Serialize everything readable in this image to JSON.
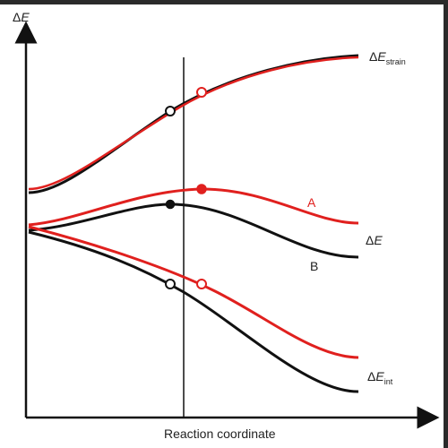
{
  "diagram": {
    "y_axis_symbol": "Δ",
    "y_axis_var": "E",
    "x_axis_label": "Reaction coordinate",
    "curve_labels": {
      "strain": {
        "symbol": "Δ",
        "var": "E",
        "sub": "strain"
      },
      "total": {
        "symbol": "Δ",
        "var": "E"
      },
      "int": {
        "symbol": "Δ",
        "var": "E",
        "sub": "int"
      },
      "series_a": "A",
      "series_b": "B"
    },
    "colors": {
      "series_a": "#e0201e",
      "series_b": "#111111",
      "axis": "#111111"
    }
  }
}
